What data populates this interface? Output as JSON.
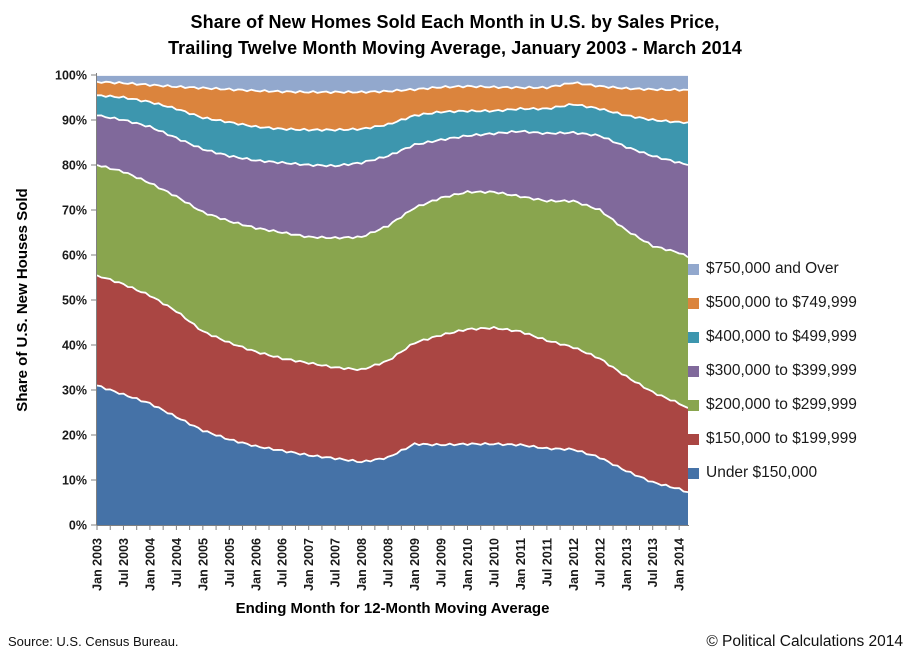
{
  "title": {
    "line1": "Share of New Homes Sold Each Month in U.S. by Sales Price,",
    "line2": "Trailing Twelve Month Moving Average, January 2003 - March 2014"
  },
  "axes": {
    "y_title": "Share of U.S. New Houses Sold",
    "x_title": "Ending Month for 12-Month Moving Average",
    "y_tick_labels": [
      "0%",
      "10%",
      "20%",
      "30%",
      "40%",
      "50%",
      "60%",
      "70%",
      "80%",
      "90%",
      "100%"
    ],
    "x_tick_labels": [
      "Jan 2003",
      "Jul 2003",
      "Jan 2004",
      "Jul 2004",
      "Jan 2005",
      "Jul 2005",
      "Jan 2006",
      "Jul 2006",
      "Jan 2007",
      "Jul 2007",
      "Jan 2008",
      "Jul 2008",
      "Jan 2009",
      "Jul 2009",
      "Jan 2010",
      "Jul 2010",
      "Jan 2011",
      "Jul 2011",
      "Jan 2012",
      "Jul 2012",
      "Jan 2013",
      "Jul 2013",
      "Jan 2014"
    ]
  },
  "legend": {
    "items": [
      {
        "label": "$750,000 and Over",
        "color": "#92A8CD"
      },
      {
        "label": "$500,000 to $749,999",
        "color": "#DB843D"
      },
      {
        "label": "$400,000 to $499,999",
        "color": "#3D96AE"
      },
      {
        "label": "$300,000 to $399,999",
        "color": "#80699B"
      },
      {
        "label": "$200,000 to $299,999",
        "color": "#89A54E"
      },
      {
        "label": "$150,000 to $199,999",
        "color": "#AA4643"
      },
      {
        "label": "Under $150,000",
        "color": "#4572A7"
      }
    ]
  },
  "footer": {
    "source": "Source: U.S. Census Bureau.",
    "copyright": "© Political Calculations 2014"
  },
  "chart_data": {
    "type": "area",
    "stacking": "percent",
    "title": "Share of New Homes Sold Each Month in U.S. by Sales Price, Trailing Twelve Month Moving Average, January 2003 - March 2014",
    "xlabel": "Ending Month for 12-Month Moving Average",
    "ylabel": "Share of U.S. New Houses Sold",
    "ylim": [
      0,
      100
    ],
    "grid": false,
    "legend_position": "right",
    "x": [
      "Jan 2003",
      "Jul 2003",
      "Jan 2004",
      "Jul 2004",
      "Jan 2005",
      "Jul 2005",
      "Jan 2006",
      "Jul 2006",
      "Jan 2007",
      "Jul 2007",
      "Jan 2008",
      "Jul 2008",
      "Jan 2009",
      "Jul 2009",
      "Jan 2010",
      "Jul 2010",
      "Jan 2011",
      "Jul 2011",
      "Jan 2012",
      "Jul 2012",
      "Jan 2013",
      "Jul 2013",
      "Jan 2014",
      "Mar 2014"
    ],
    "x_months_from_start": [
      0,
      6,
      12,
      18,
      24,
      30,
      36,
      42,
      48,
      54,
      60,
      66,
      72,
      78,
      84,
      90,
      96,
      102,
      108,
      114,
      120,
      126,
      132,
      134
    ],
    "series": [
      {
        "name": "Under $150,000",
        "color": "#4572A7",
        "values": [
          31,
          29,
          27,
          24,
          21,
          19,
          17.5,
          16.5,
          15.5,
          14.8,
          14,
          15,
          18,
          17.8,
          18,
          18,
          17.8,
          17,
          16.8,
          15,
          12,
          9.5,
          8,
          7.3
        ]
      },
      {
        "name": "$150,000 to $199,999",
        "color": "#AA4643",
        "values": [
          24.5,
          24.5,
          24,
          23.5,
          22,
          21.5,
          21,
          20.5,
          20.5,
          20.2,
          20.5,
          21.5,
          22.5,
          24.4,
          25.5,
          25.8,
          25.2,
          24,
          22.7,
          22,
          21,
          20,
          19,
          18.7
        ]
      },
      {
        "name": "$200,000 to $299,999",
        "color": "#89A54E",
        "values": [
          24.5,
          25,
          25,
          25.5,
          26.5,
          27,
          27.5,
          28,
          28,
          28.8,
          29.5,
          30,
          30,
          30.5,
          30.5,
          30.2,
          30,
          31,
          32.5,
          33,
          32.5,
          32.5,
          33.5,
          33.5
        ]
      },
      {
        "name": "$300,000 to $399,999",
        "color": "#80699B",
        "values": [
          11,
          11.5,
          12.5,
          13,
          14,
          14.5,
          15,
          15.5,
          16,
          16,
          16.5,
          15.5,
          14,
          12.9,
          12.5,
          13,
          14.5,
          15,
          15.2,
          16.5,
          18.5,
          20,
          20,
          20.5
        ]
      },
      {
        "name": "$400,000 to $499,999",
        "color": "#3D96AE",
        "values": [
          4.5,
          5,
          5.5,
          6.5,
          7,
          7.5,
          7.5,
          7.5,
          7.8,
          8,
          7.5,
          7,
          6.5,
          6.2,
          5.5,
          5,
          5,
          5.5,
          6.3,
          6,
          7,
          8,
          9,
          9.5
        ]
      },
      {
        "name": "$500,000 to $749,999",
        "color": "#DB843D",
        "values": [
          3,
          3.2,
          3.8,
          4.9,
          6.6,
          7.3,
          8,
          8.3,
          8.4,
          8.4,
          8.2,
          7.4,
          5.8,
          5.5,
          5.5,
          5.3,
          4.7,
          4.7,
          4.8,
          5,
          6,
          6.8,
          7.2,
          7.2
        ]
      },
      {
        "name": "$750,000 and Over",
        "color": "#92A8CD",
        "values": [
          1.5,
          1.8,
          2.2,
          2.6,
          2.9,
          3.2,
          3.5,
          3.7,
          3.8,
          3.8,
          3.8,
          3.6,
          3.2,
          2.7,
          2.5,
          2.7,
          2.8,
          2.8,
          1.7,
          2.5,
          3,
          3.2,
          3.3,
          3.3
        ]
      }
    ]
  }
}
